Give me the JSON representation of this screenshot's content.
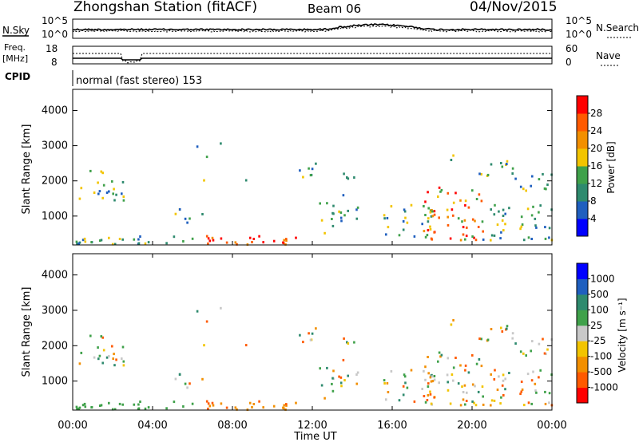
{
  "header": {
    "station": "Zhongshan Station (fitACF)",
    "beam": "Beam 06",
    "date": "04/Nov/2015"
  },
  "top_panel": {
    "left_label": "N.Sky",
    "right_label": "N.Search",
    "left_ticks": [
      "10^5",
      "10^0"
    ],
    "right_ticks": [
      "10^5",
      "10^0"
    ]
  },
  "freq_panel": {
    "left_label_1": "Freq.",
    "left_label_2": "[MHz]",
    "right_label": "Nave",
    "left_ticks": [
      "18",
      "8"
    ],
    "right_ticks": [
      "60",
      "0"
    ],
    "cpid_label": "CPID",
    "mode_text": "normal (fast stereo) 153"
  },
  "chart_data": [
    {
      "type": "heatmap",
      "name": "Power",
      "ylabel": "Slant Range [km]",
      "y_ticks": [
        "1000",
        "2000",
        "3000",
        "4000"
      ],
      "colorbar_label": "Power [dB]",
      "colorbar_ticks": [
        "28",
        "24",
        "20",
        "16",
        "12",
        "8",
        "4"
      ],
      "colorbar_colors": [
        "#0000ff",
        "#1f5fbf",
        "#2e8a6e",
        "#3fa14a",
        "#f2c400",
        "#f28f00",
        "#ff5a00",
        "#ff0000"
      ]
    },
    {
      "type": "heatmap",
      "name": "Velocity",
      "ylabel": "Slant Range [km]",
      "y_ticks": [
        "1000",
        "2000",
        "3000",
        "4000"
      ],
      "colorbar_label": "Velocity [m s⁻¹]",
      "colorbar_ticks": [
        "1000",
        "500",
        "100",
        "25",
        "-25",
        "-100",
        "-500",
        "-1000"
      ],
      "colorbar_colors": [
        "#ff0000",
        "#ff5a00",
        "#f28f00",
        "#f2c400",
        "#c8c8c8",
        "#3fa14a",
        "#2e8a6e",
        "#1f5fbf",
        "#0000ff"
      ]
    }
  ],
  "x_axis": {
    "label": "Time UT",
    "ticks": [
      "00:00",
      "04:00",
      "08:00",
      "12:00",
      "16:00",
      "20:00",
      "00:00"
    ]
  }
}
